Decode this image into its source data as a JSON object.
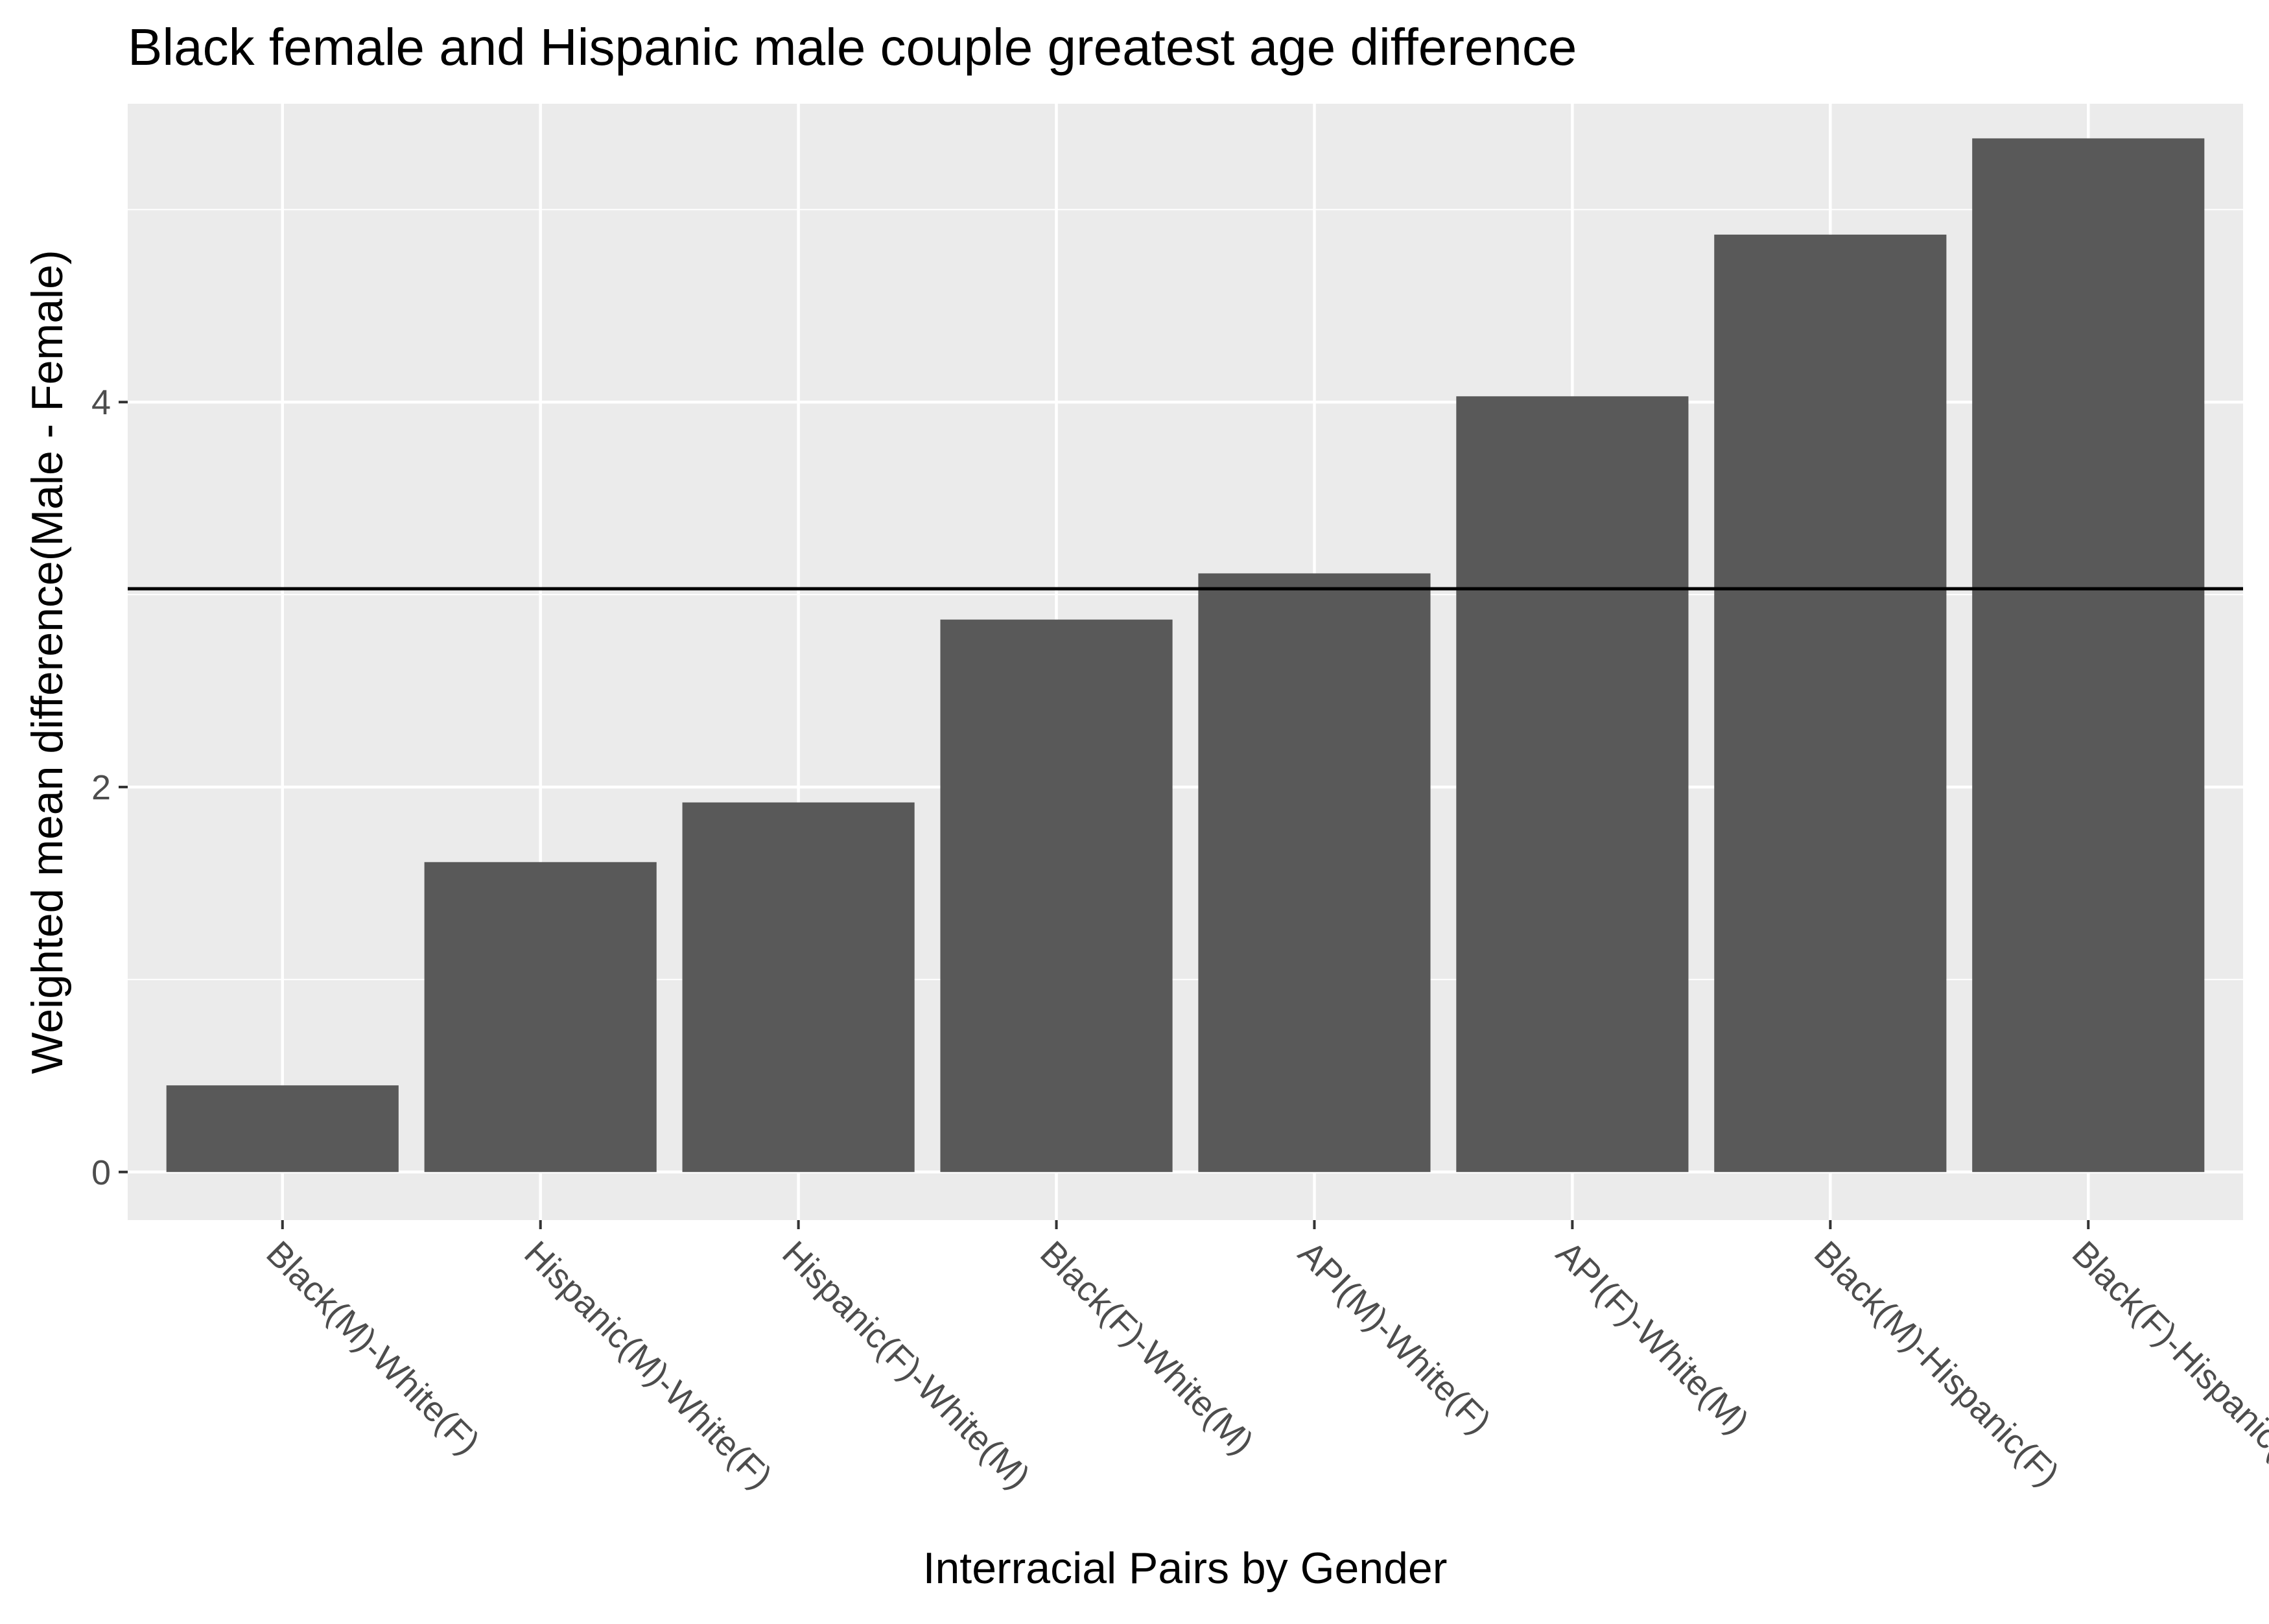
{
  "chart_data": {
    "type": "bar",
    "title": "Black female and Hispanic male couple greatest age difference",
    "xlabel": "Interracial Pairs by Gender",
    "ylabel": "Weighted mean difference(Male - Female)",
    "categories": [
      "Black(M)-White(F)",
      "Hispanic(M)-White(F)",
      "Hispanic(F)-White(M)",
      "Black(F)-White(M)",
      "API(M)-White(F)",
      "API(F)-White(M)",
      "Black(M)-Hispanic(F)",
      "Black(F)-Hispanic(M)"
    ],
    "values": [
      0.45,
      1.61,
      1.92,
      2.87,
      3.11,
      4.03,
      4.87,
      5.37
    ],
    "reference_line": 3.03,
    "ylim": [
      -0.25,
      5.55
    ],
    "yticks": [
      0,
      2,
      4
    ],
    "x_tick_rotation_deg": 45,
    "grid": true,
    "colors": {
      "bar": "#595959",
      "panel": "#ebebeb",
      "grid": "#ffffff",
      "reference_line": "#000000",
      "tick_text": "#4d4d4d",
      "tick_mark": "#333333"
    }
  }
}
